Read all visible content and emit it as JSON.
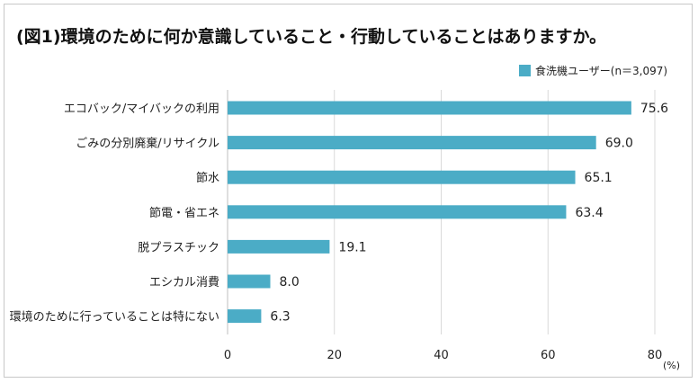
{
  "title": "(図1)環境のために何か意識していること・行動していることはありますか。",
  "colors": {
    "bar": "#4bacc6",
    "grid": "#d9d9d9",
    "axis": "#bfbfbf"
  },
  "chart_data": {
    "type": "bar",
    "orientation": "horizontal",
    "title": "(図1)環境のために何か意識していること・行動していることはありますか。",
    "categories": [
      "エコバック/マイバックの利用",
      "ごみの分別廃棄/リサイクル",
      "節水",
      "節電・省エネ",
      "脱プラスチック",
      "エシカル消費",
      "環境のために行っていることは特にない"
    ],
    "series": [
      {
        "name": "食洗機ユーザー(n＝3,097)",
        "values": [
          75.6,
          69.0,
          65.1,
          63.4,
          19.1,
          8.0,
          6.3
        ]
      }
    ],
    "value_labels": [
      "75.6",
      "69.0",
      "65.1",
      "63.4",
      "19.1",
      "8.0",
      "6.3"
    ],
    "xlim": [
      0,
      80
    ],
    "xticks": [
      0,
      20,
      40,
      60,
      80
    ],
    "xtick_labels": [
      "0",
      "20",
      "40",
      "60",
      "80"
    ],
    "x_unit": "(%)",
    "grid": "vertical",
    "legend_position": "top-right"
  }
}
